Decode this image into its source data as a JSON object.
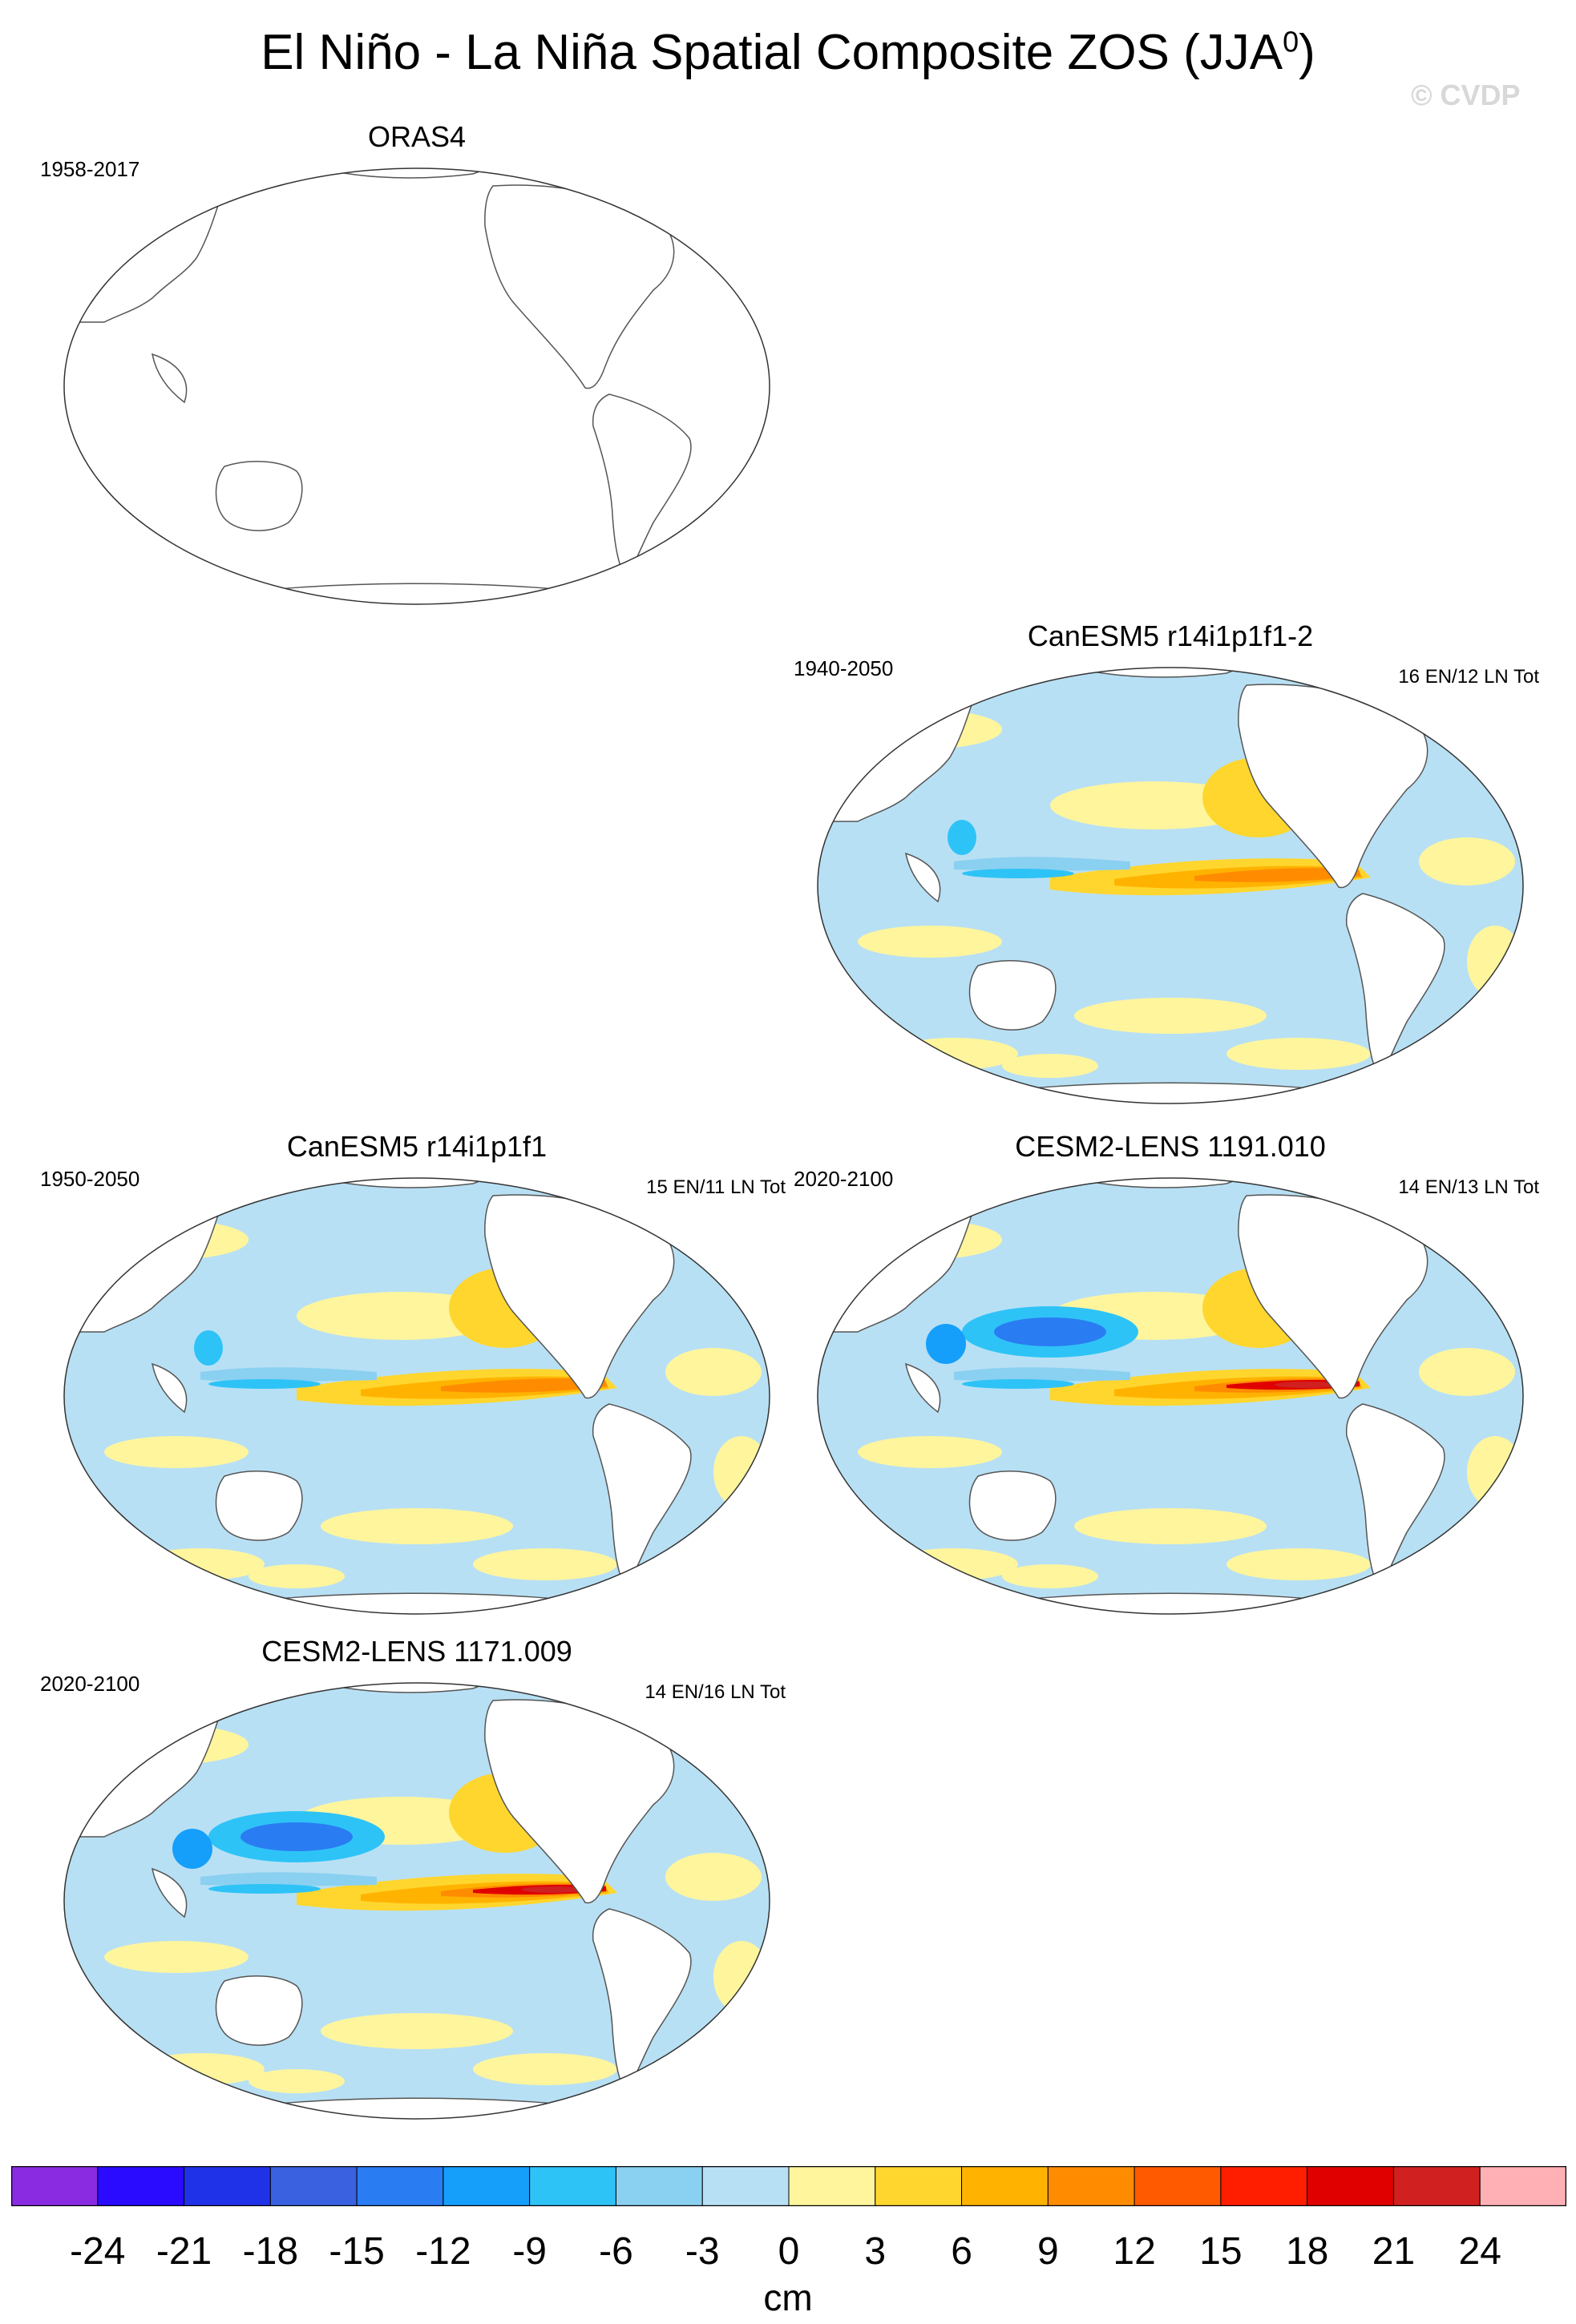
{
  "title": {
    "main": "El Niño - La Niña Spatial Composite ZOS (JJA",
    "sup": "0",
    "close": ")"
  },
  "watermark": "© CVDP",
  "panels": [
    {
      "title": "ORAS4",
      "period": "1958-2017",
      "counts": "",
      "field": "none"
    },
    {
      "title": "CanESM5 r14i1p1f1-2",
      "period": "1940-2050",
      "counts": "16 EN/12 LN Tot",
      "field": "moderate"
    },
    {
      "title": "CanESM5 r14i1p1f1",
      "period": "1950-2050",
      "counts": "15 EN/11 LN Tot",
      "field": "moderate"
    },
    {
      "title": "CESM2-LENS 1191.010",
      "period": "2020-2100",
      "counts": "14 EN/13 LN Tot",
      "field": "strong"
    },
    {
      "title": "CESM2-LENS 1171.009",
      "period": "2020-2100",
      "counts": "14 EN/16 LN Tot",
      "field": "strong"
    }
  ],
  "colorbar": {
    "unit": "cm",
    "ticks": [
      "-24",
      "-21",
      "-18",
      "-15",
      "-12",
      "-9",
      "-6",
      "-3",
      "0",
      "3",
      "6",
      "9",
      "12",
      "15",
      "18",
      "21",
      "24"
    ],
    "colors": [
      "#8a2be2",
      "#2a0bff",
      "#2032e8",
      "#3a62e0",
      "#2a7cf2",
      "#159ffa",
      "#2ec3f7",
      "#8ad0f0",
      "#b8e0f4",
      "#fff59d",
      "#ffd62e",
      "#ffb300",
      "#ff8c00",
      "#ff5a00",
      "#ff1e00",
      "#e00000",
      "#d02020",
      "#ffb0b5"
    ]
  }
}
